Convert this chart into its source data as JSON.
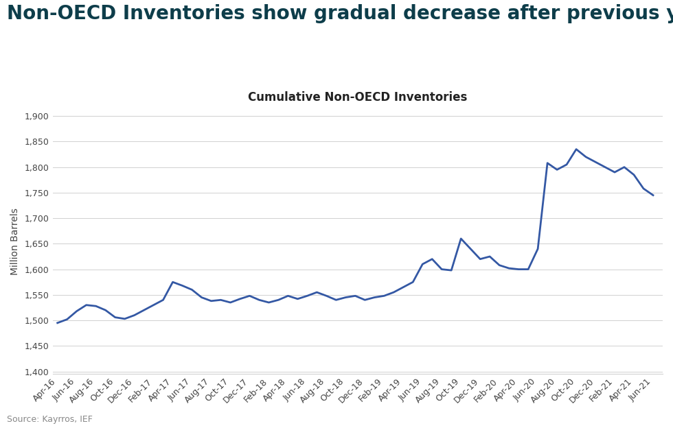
{
  "title": "Non-OECD Inventories show gradual decrease after previous year highs",
  "subtitle": "Cumulative Non-OECD Inventories",
  "ylabel": "Million Barrels",
  "source": "Source: Kayrros, IEF",
  "line_color": "#3458a4",
  "title_color": "#0d3d4a",
  "background_color": "#ffffff",
  "ylim": [
    1395,
    1915
  ],
  "yticks": [
    1400,
    1450,
    1500,
    1550,
    1600,
    1650,
    1700,
    1750,
    1800,
    1850,
    1900
  ],
  "x_labels": [
    "Apr-16",
    "Jun-16",
    "Aug-16",
    "Oct-16",
    "Dec-16",
    "Feb-17",
    "Apr-17",
    "Jun-17",
    "Aug-17",
    "Oct-17",
    "Dec-17",
    "Feb-18",
    "Apr-18",
    "Jun-18",
    "Aug-18",
    "Oct-18",
    "Dec-18",
    "Feb-19",
    "Apr-19",
    "Jun-19",
    "Aug-19",
    "Oct-19",
    "Dec-19",
    "Feb-20",
    "Apr-20",
    "Jun-20",
    "Aug-20",
    "Oct-20",
    "Dec-20",
    "Feb-21",
    "Apr-21",
    "Jun-21"
  ],
  "x_values": [
    0,
    2,
    4,
    6,
    8,
    10,
    12,
    14,
    16,
    18,
    20,
    22,
    24,
    26,
    28,
    30,
    32,
    34,
    36,
    38,
    40,
    42,
    44,
    46,
    48,
    50,
    52,
    54,
    56,
    58,
    60,
    62
  ],
  "y_values_x": [
    0,
    1,
    2,
    3,
    4,
    5,
    6,
    7,
    8,
    9,
    10,
    11,
    12,
    13,
    14,
    15,
    16,
    17,
    18,
    19,
    20,
    21,
    22,
    23,
    24,
    25,
    26,
    27,
    28,
    29,
    30,
    31,
    32,
    33,
    34,
    35,
    36,
    37,
    38,
    39,
    40,
    41,
    42,
    43,
    44,
    45,
    46,
    47,
    48,
    49,
    50,
    51,
    52,
    53,
    54,
    55,
    56,
    57,
    58,
    59,
    60,
    61,
    62
  ],
  "y_values": [
    1495,
    1502,
    1518,
    1530,
    1528,
    1520,
    1506,
    1503,
    1510,
    1520,
    1530,
    1540,
    1575,
    1568,
    1560,
    1545,
    1538,
    1540,
    1535,
    1542,
    1548,
    1540,
    1535,
    1540,
    1548,
    1542,
    1548,
    1555,
    1548,
    1540,
    1545,
    1548,
    1540,
    1545,
    1548,
    1555,
    1565,
    1575,
    1610,
    1620,
    1600,
    1598,
    1660,
    1640,
    1620,
    1625,
    1608,
    1602,
    1600,
    1600,
    1640,
    1808,
    1795,
    1805,
    1835,
    1820,
    1810,
    1800,
    1790,
    1800,
    1785,
    1758,
    1745
  ],
  "title_fontsize": 20,
  "subtitle_fontsize": 12,
  "axis_label_fontsize": 10,
  "tick_fontsize": 9,
  "source_fontsize": 9,
  "grid_color": "#d0d0d0",
  "tick_color": "#444444",
  "title_bg_color": "#ffffff"
}
